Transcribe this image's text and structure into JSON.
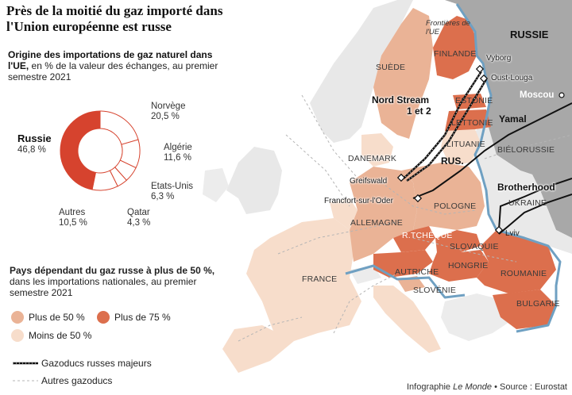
{
  "title": "Près de la moitié du gaz importé dans l'Union européenne est russe",
  "origin_block": {
    "heading": "Origine des importations de gaz naturel dans l'UE,",
    "subheading": " en % de la valeur des échanges, au premier semestre 2021"
  },
  "pie": {
    "slices": [
      {
        "name": "Russie",
        "value": "46,8 %",
        "percent": 46.8,
        "color": "#d6432e"
      },
      {
        "name": "Norvège",
        "value": "20,5 %",
        "percent": 20.5,
        "color": "#ffffff"
      },
      {
        "name": "Algérie",
        "value": "11,6 %",
        "percent": 11.6,
        "color": "#ffffff"
      },
      {
        "name": "Etats-Unis",
        "value": "6,3 %",
        "percent": 6.3,
        "color": "#ffffff"
      },
      {
        "name": "Qatar",
        "value": "4,3 %",
        "percent": 4.3,
        "color": "#ffffff"
      },
      {
        "name": "Autres",
        "value": "10,5 %",
        "percent": 10.5,
        "color": "#ffffff"
      }
    ]
  },
  "dependency_block": {
    "heading": "Pays dépendant du gaz russe à plus de 50 %,",
    "subheading": " dans les importations nationales, au premier semestre 2021"
  },
  "legend": {
    "plus50": "Plus de 50 %",
    "plus75": "Plus de 75 %",
    "moins50": "Moins de 50 %",
    "major_pipelines": "Gazoducs russes majeurs",
    "other_pipelines": "Autres gazoducs"
  },
  "colors": {
    "plus75": "#dc6f4d",
    "plus50": "#eab396",
    "moins50": "#f7ddcb",
    "non_eu": "#eeeeee",
    "russia": "#a8a8a8",
    "sea": "#ffffff",
    "border_blue": "#6fa0c2",
    "pie_russia": "#d6432e"
  },
  "map_labels": {
    "russie": "RUSSIE",
    "frontieres": "Frontières de l'UE",
    "suede": "SUÈDE",
    "finlande": "FINLANDE",
    "vyborg": "Vyborg",
    "oust_louga": "Oust-Louga",
    "nord_stream_1": "Nord Stream",
    "nord_stream_2": "1 et 2",
    "estonie": "ESTONIE",
    "lettonie": "LETTONIE",
    "moscou": "Moscou",
    "yamal": "Yamal",
    "lituanie": "LITUANIE",
    "danemark": "DANEMARK",
    "rus": "RUS.",
    "bielorussie": "BIÉLORUSSIE",
    "greifswald": "Greifswald",
    "brotherhood": "Brotherhood",
    "francfort": "Francfort-sur-l'Oder",
    "pologne": "POLOGNE",
    "ukraine": "UKRAINE",
    "allemagne": "ALLEMAGNE",
    "lviv": "Lviv",
    "rtcheque": "R.TCHÈQUE",
    "slovaquie": "SLOVAQUIE",
    "france": "FRANCE",
    "autriche": "AUTRICHE",
    "hongrie": "HONGRIE",
    "roumanie": "ROUMANIE",
    "slovenie": "SLOVÉNIE",
    "bulgarie": "BULGARIE"
  },
  "footer": {
    "prefix": "Infographie ",
    "publisher": "Le Monde",
    "separator": " • ",
    "source": "Source : Eurostat"
  }
}
